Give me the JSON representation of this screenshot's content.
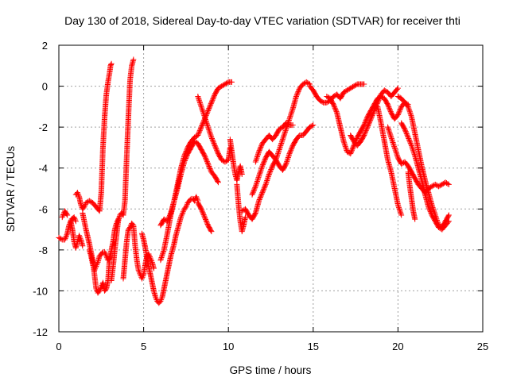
{
  "chart_data": {
    "type": "scatter",
    "title": "Day 130 of 2018, Sidereal Day-to-day VTEC variation (SDTVAR) for receiver thti",
    "xlabel": "GPS time / hours",
    "ylabel": "SDTVAR / TECUs",
    "xlim": [
      0,
      25
    ],
    "ylim": [
      -12,
      2
    ],
    "xticks": [
      "0",
      "5",
      "10",
      "15",
      "20",
      "25"
    ],
    "yticks": [
      "2",
      "0",
      "-2",
      "-4",
      "-6",
      "-8",
      "-10",
      "-12"
    ],
    "grid": true,
    "marker": "+",
    "color": "#ff0000",
    "series": [
      {
        "x": [
          0.0,
          0.2,
          0.35,
          0.5,
          0.6,
          0.75,
          0.9,
          1.0
        ],
        "y": [
          -7.4,
          -7.5,
          -7.5,
          -7.2,
          -6.8,
          -6.5,
          -6.4,
          -6.6
        ]
      },
      {
        "x": [
          0.2,
          0.35,
          0.5
        ],
        "y": [
          -6.4,
          -6.1,
          -6.3
        ]
      },
      {
        "x": [
          0.7,
          0.8,
          0.9,
          1.0,
          1.1,
          1.2,
          1.3,
          1.4
        ],
        "y": [
          -6.6,
          -7.0,
          -7.6,
          -7.9,
          -7.6,
          -7.3,
          -7.5,
          -7.8
        ]
      },
      {
        "x": [
          1.0,
          1.1,
          1.2,
          1.3,
          1.4,
          1.5,
          1.6,
          1.8,
          2.0,
          2.2,
          2.4,
          2.5,
          2.6,
          2.7,
          2.8,
          2.9,
          3.0,
          3.05,
          3.1
        ],
        "y": [
          -5.3,
          -5.2,
          -5.4,
          -5.8,
          -6.0,
          -5.9,
          -5.7,
          -5.6,
          -5.7,
          -5.9,
          -6.1,
          -5.2,
          -3.0,
          -1.5,
          -0.4,
          0.2,
          0.7,
          1.0,
          1.1
        ]
      },
      {
        "x": [
          1.4,
          1.6,
          1.8,
          2.0,
          2.1,
          2.2,
          2.3,
          2.4,
          2.5,
          2.6,
          2.7,
          2.8,
          2.9,
          3.0
        ],
        "y": [
          -6.2,
          -7.0,
          -7.7,
          -8.5,
          -9.2,
          -9.9,
          -10.1,
          -10.0,
          -9.8,
          -9.6,
          -10.0,
          -9.9,
          -9.5,
          -8.3
        ]
      },
      {
        "x": [
          1.8,
          1.9,
          2.0,
          2.1,
          2.2,
          2.3,
          2.4,
          2.5,
          2.6,
          2.7,
          2.8,
          2.9,
          3.0,
          3.1,
          3.2,
          3.3,
          3.4,
          3.5
        ],
        "y": [
          -8.0,
          -8.3,
          -8.7,
          -9.0,
          -8.8,
          -8.6,
          -8.3,
          -8.2,
          -8.1,
          -8.1,
          -8.3,
          -8.5,
          -8.4,
          -8.0,
          -7.6,
          -7.0,
          -6.7,
          -6.5
        ]
      },
      {
        "x": [
          3.1,
          3.2,
          3.3,
          3.4,
          3.5,
          3.6,
          3.7,
          3.8,
          3.9,
          4.0,
          4.1,
          4.2,
          4.3,
          4.4
        ],
        "y": [
          -9.5,
          -8.8,
          -8.0,
          -7.3,
          -6.6,
          -6.3,
          -6.2,
          -6.3,
          -5.6,
          -3.5,
          -1.5,
          0.3,
          1.0,
          1.3
        ]
      },
      {
        "x": [
          3.8,
          3.9,
          4.0,
          4.1,
          4.2,
          4.3,
          4.4,
          4.5,
          4.6,
          4.7,
          4.8,
          4.9,
          5.0,
          5.1,
          5.2,
          5.3,
          5.4,
          5.5,
          5.6
        ],
        "y": [
          -9.4,
          -8.5,
          -7.6,
          -7.0,
          -6.9,
          -6.7,
          -6.8,
          -7.8,
          -8.5,
          -9.0,
          -9.2,
          -9.4,
          -9.2,
          -8.7,
          -8.3,
          -8.2,
          -8.4,
          -8.6,
          -8.9
        ]
      },
      {
        "x": [
          4.9,
          5.0,
          5.1,
          5.2,
          5.3,
          5.4,
          5.5,
          5.6,
          5.7,
          5.8,
          5.9,
          6.0,
          6.1,
          6.2,
          6.3,
          6.4,
          6.5,
          6.6,
          6.7,
          6.8,
          6.9,
          7.0,
          7.1,
          7.2,
          7.3,
          7.4,
          7.5,
          7.6,
          7.7,
          7.8,
          7.9,
          8.0,
          8.1,
          8.2
        ],
        "y": [
          -7.2,
          -7.5,
          -7.9,
          -8.4,
          -8.8,
          -9.2,
          -9.6,
          -10.0,
          -10.3,
          -10.5,
          -10.6,
          -10.5,
          -10.3,
          -9.9,
          -9.5,
          -9.1,
          -8.7,
          -8.3,
          -8.0,
          -7.7,
          -7.3,
          -7.0,
          -6.7,
          -6.4,
          -6.2,
          -6.0,
          -5.9,
          -5.7,
          -5.6,
          -5.5,
          -5.5,
          -5.6,
          -5.4,
          -5.6
        ]
      },
      {
        "x": [
          8.2,
          8.4,
          8.6,
          8.8,
          9.0
        ],
        "y": [
          -5.7,
          -6.0,
          -6.4,
          -6.8,
          -7.1
        ]
      },
      {
        "x": [
          6.0,
          6.2,
          6.4,
          6.6,
          6.8,
          7.0,
          7.2,
          7.4,
          7.6,
          7.8,
          8.0,
          8.2,
          8.4,
          8.6,
          8.8,
          9.0,
          9.2,
          9.4,
          9.6,
          9.8,
          10.0,
          10.2
        ],
        "y": [
          -6.8,
          -6.5,
          -6.6,
          -6.2,
          -5.6,
          -4.8,
          -4.0,
          -3.4,
          -3.0,
          -2.7,
          -2.5,
          -2.4,
          -2.0,
          -1.6,
          -1.2,
          -0.8,
          -0.4,
          -0.1,
          0.0,
          0.1,
          0.2,
          0.2
        ]
      },
      {
        "x": [
          6.0,
          6.2,
          6.4,
          6.6,
          6.8,
          7.0,
          7.2,
          7.4,
          7.6,
          7.8,
          8.0,
          8.2,
          8.4,
          8.6,
          8.8,
          9.0,
          9.2,
          9.4
        ],
        "y": [
          -8.5,
          -8.0,
          -7.2,
          -6.3,
          -5.6,
          -5.0,
          -4.3,
          -3.7,
          -3.3,
          -3.0,
          -2.7,
          -2.8,
          -3.1,
          -3.4,
          -3.8,
          -4.2,
          -4.4,
          -4.7
        ]
      },
      {
        "x": [
          8.2,
          8.4,
          8.6,
          8.8,
          9.0,
          9.2,
          9.4,
          9.6,
          9.8,
          10.0,
          10.1
        ],
        "y": [
          -0.5,
          -1.0,
          -1.5,
          -2.0,
          -2.5,
          -2.9,
          -3.3,
          -3.6,
          -3.7,
          -3.6,
          -3.0
        ]
      },
      {
        "x": [
          10.1,
          10.2,
          10.3,
          10.4,
          10.5,
          10.6,
          10.7,
          10.8
        ],
        "y": [
          -2.6,
          -3.2,
          -3.8,
          -4.3,
          -4.6,
          -4.2,
          -3.9,
          -4.3
        ]
      },
      {
        "x": [
          10.5,
          10.6,
          10.7,
          10.8,
          10.9,
          11.0
        ],
        "y": [
          -4.8,
          -5.8,
          -6.6,
          -7.1,
          -6.8,
          -6.4
        ]
      },
      {
        "x": [
          10.8,
          11.0,
          11.2,
          11.4,
          11.6,
          11.8,
          12.0,
          12.2,
          12.4,
          12.6,
          12.8,
          13.0,
          13.2,
          13.4,
          13.6,
          13.8,
          14.0,
          14.2,
          14.4,
          14.6,
          14.8
        ],
        "y": [
          -6.1,
          -6.0,
          -6.3,
          -6.5,
          -6.2,
          -5.6,
          -5.2,
          -4.8,
          -4.3,
          -3.9,
          -3.6,
          -3.1,
          -2.6,
          -2.1,
          -1.6,
          -1.1,
          -0.5,
          -0.1,
          0.1,
          0.2,
          0.1
        ]
      },
      {
        "x": [
          11.4,
          11.6,
          11.8,
          12.0,
          12.2,
          12.4,
          12.6,
          12.8,
          13.0,
          13.2,
          13.4,
          13.6,
          13.8,
          14.0,
          14.2,
          14.4,
          14.6,
          14.8,
          15.0
        ],
        "y": [
          -5.3,
          -4.9,
          -4.4,
          -3.9,
          -3.5,
          -3.2,
          -3.4,
          -3.6,
          -3.9,
          -4.1,
          -3.8,
          -3.3,
          -2.9,
          -2.6,
          -2.4,
          -2.4,
          -2.2,
          -2.0,
          -1.9
        ]
      },
      {
        "x": [
          11.6,
          11.8,
          12.0,
          12.2,
          12.4,
          12.6,
          12.8,
          13.0,
          13.2,
          13.4,
          13.6,
          13.8
        ],
        "y": [
          -3.7,
          -3.2,
          -2.8,
          -2.6,
          -2.4,
          -2.6,
          -2.4,
          -2.1,
          -2.0,
          -1.8,
          -1.9,
          -1.9
        ]
      },
      {
        "x": [
          14.8,
          15.0,
          15.2,
          15.4,
          15.6,
          15.8,
          16.0,
          16.2,
          16.4,
          16.6,
          16.8,
          17.0,
          17.2,
          17.4,
          17.6,
          17.8,
          18.0
        ],
        "y": [
          0.0,
          -0.2,
          -0.5,
          -0.7,
          -0.8,
          -0.8,
          -0.7,
          -0.5,
          -0.4,
          -0.6,
          -0.3,
          -0.2,
          -0.1,
          0.0,
          0.1,
          0.1,
          0.1
        ]
      },
      {
        "x": [
          15.8,
          16.0,
          16.2,
          16.4,
          16.6,
          16.8,
          17.0,
          17.2,
          17.4,
          17.6,
          17.8,
          18.0,
          18.2,
          18.4,
          18.6,
          18.8,
          19.0,
          19.2,
          19.4,
          19.6,
          19.8,
          20.0,
          20.2,
          20.4,
          20.6
        ],
        "y": [
          -0.5,
          -0.6,
          -0.9,
          -1.3,
          -2.0,
          -2.7,
          -3.2,
          -3.3,
          -2.9,
          -2.5,
          -2.2,
          -1.9,
          -1.5,
          -1.2,
          -0.9,
          -0.6,
          -0.5,
          -0.6,
          -0.9,
          -1.3,
          -1.6,
          -1.4,
          -1.0,
          -0.8,
          -0.9
        ]
      },
      {
        "x": [
          17.2,
          17.4,
          17.6,
          17.8,
          18.0,
          18.2,
          18.4,
          18.6,
          18.8,
          19.0,
          19.2,
          19.4,
          19.6,
          19.8,
          20.0
        ],
        "y": [
          -2.4,
          -2.7,
          -2.9,
          -2.7,
          -2.4,
          -2.0,
          -1.6,
          -1.2,
          -0.8,
          -0.4,
          -0.2,
          -0.3,
          -0.5,
          -0.3,
          -0.1
        ]
      },
      {
        "x": [
          18.8,
          19.0,
          19.2,
          19.4,
          19.6,
          19.8,
          20.0,
          20.2
        ],
        "y": [
          -1.0,
          -1.8,
          -2.7,
          -3.6,
          -4.2,
          -5.0,
          -5.8,
          -6.3
        ]
      },
      {
        "x": [
          19.4,
          19.6,
          19.8,
          20.0,
          20.2,
          20.4,
          20.6,
          20.8,
          21.0,
          21.2,
          21.4,
          21.6,
          21.8,
          22.0,
          22.2,
          22.4,
          22.6,
          22.8,
          23.0
        ],
        "y": [
          -2.0,
          -2.5,
          -3.0,
          -3.5,
          -3.8,
          -3.7,
          -3.9,
          -4.2,
          -4.5,
          -4.8,
          -5.0,
          -5.2,
          -5.0,
          -4.9,
          -4.8,
          -4.9,
          -4.8,
          -4.7,
          -4.8
        ]
      },
      {
        "x": [
          20.0,
          20.2,
          20.4,
          20.6,
          20.8,
          21.0,
          21.2,
          21.4,
          21.6,
          21.8,
          22.0,
          22.2,
          22.4,
          22.6,
          22.8,
          23.0
        ],
        "y": [
          -0.5,
          -0.6,
          -0.8,
          -1.0,
          -1.5,
          -2.3,
          -3.1,
          -3.9,
          -4.6,
          -5.2,
          -5.8,
          -6.3,
          -6.8,
          -6.9,
          -6.6,
          -6.3
        ]
      },
      {
        "x": [
          20.2,
          20.4,
          20.6,
          20.8,
          21.0,
          21.2,
          21.4,
          21.6,
          21.8,
          22.0,
          22.2,
          22.4,
          22.6,
          22.8,
          23.0
        ],
        "y": [
          -1.8,
          -2.1,
          -2.5,
          -2.9,
          -3.4,
          -4.0,
          -4.6,
          -5.3,
          -5.9,
          -6.3,
          -6.6,
          -6.9,
          -7.0,
          -6.8,
          -6.6
        ]
      },
      {
        "x": [
          20.6,
          20.7,
          20.8,
          20.9,
          21.0
        ],
        "y": [
          -4.2,
          -4.9,
          -5.5,
          -6.1,
          -6.5
        ]
      }
    ]
  }
}
